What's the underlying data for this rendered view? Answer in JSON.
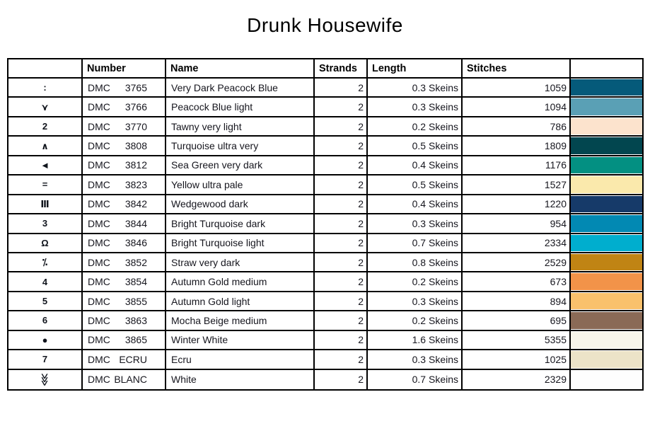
{
  "title": "Drunk Housewife",
  "table": {
    "headers": {
      "symbol": "",
      "number": "Number",
      "name": "Name",
      "strands": "Strands",
      "length": "Length",
      "stitches": "Stitches",
      "color": ""
    },
    "rows": [
      {
        "symbol": ":",
        "brand": "DMC",
        "code": "3765",
        "name": "Very Dark Peacock Blue",
        "strands": "2",
        "length": "0.3 Skeins",
        "stitches": "1059",
        "color": "#055A7A"
      },
      {
        "symbol": "⋎",
        "brand": "DMC",
        "code": "3766",
        "name": "Peacock Blue light",
        "strands": "2",
        "length": "0.3 Skeins",
        "stitches": "1094",
        "color": "#5AA0B5"
      },
      {
        "symbol": "2",
        "brand": "DMC",
        "code": "3770",
        "name": "Tawny very light",
        "strands": "2",
        "length": "0.2 Skeins",
        "stitches": "786",
        "color": "#FCE3CD"
      },
      {
        "symbol": "∧",
        "brand": "DMC",
        "code": "3808",
        "name": "Turquoise ultra very",
        "strands": "2",
        "length": "0.5 Skeins",
        "stitches": "1809",
        "color": "#02464F"
      },
      {
        "symbol": "◄",
        "brand": "DMC",
        "code": "3812",
        "name": "Sea Green very dark",
        "strands": "2",
        "length": "0.4 Skeins",
        "stitches": "1176",
        "color": "#039082"
      },
      {
        "symbol": "=",
        "brand": "DMC",
        "code": "3823",
        "name": "Yellow ultra pale",
        "strands": "2",
        "length": "0.5 Skeins",
        "stitches": "1527",
        "color": "#FAE9AC"
      },
      {
        "symbol": "Ⅲ",
        "brand": "DMC",
        "code": "3842",
        "name": "Wedgewood dark",
        "strands": "2",
        "length": "0.4 Skeins",
        "stitches": "1220",
        "color": "#163A69"
      },
      {
        "symbol": "3",
        "brand": "DMC",
        "code": "3844",
        "name": "Bright Turquoise dark",
        "strands": "2",
        "length": "0.3 Skeins",
        "stitches": "954",
        "color": "#0289B3"
      },
      {
        "symbol": "Ω",
        "brand": "DMC",
        "code": "3846",
        "name": "Bright Turquoise light",
        "strands": "2",
        "length": "0.7 Skeins",
        "stitches": "2334",
        "color": "#00AECE"
      },
      {
        "symbol": "⁒",
        "brand": "DMC",
        "code": "3852",
        "name": "Straw very dark",
        "strands": "2",
        "length": "0.8 Skeins",
        "stitches": "2529",
        "color": "#C08414"
      },
      {
        "symbol": "4",
        "brand": "DMC",
        "code": "3854",
        "name": "Autumn Gold medium",
        "strands": "2",
        "length": "0.2 Skeins",
        "stitches": "673",
        "color": "#F29349"
      },
      {
        "symbol": "5",
        "brand": "DMC",
        "code": "3855",
        "name": "Autumn Gold light",
        "strands": "2",
        "length": "0.3 Skeins",
        "stitches": "894",
        "color": "#F9C16C"
      },
      {
        "symbol": "6",
        "brand": "DMC",
        "code": "3863",
        "name": "Mocha Beige medium",
        "strands": "2",
        "length": "0.2 Skeins",
        "stitches": "695",
        "color": "#8A6A56"
      },
      {
        "symbol": "●",
        "brand": "DMC",
        "code": "3865",
        "name": "Winter White",
        "strands": "2",
        "length": "1.6 Skeins",
        "stitches": "5355",
        "color": "#F7F5EA"
      },
      {
        "symbol": "7",
        "brand": "DMC",
        "code": "ECRU",
        "name": "Ecru",
        "strands": "2",
        "length": "0.3 Skeins",
        "stitches": "1025",
        "color": "#ECE3C8"
      },
      {
        "symbol": "⋙",
        "rotate": true,
        "brand": "DMC",
        "code": "BLANC",
        "name": "White",
        "strands": "2",
        "length": "0.7 Skeins",
        "stitches": "2329",
        "color": "#FEFEFE"
      }
    ]
  }
}
